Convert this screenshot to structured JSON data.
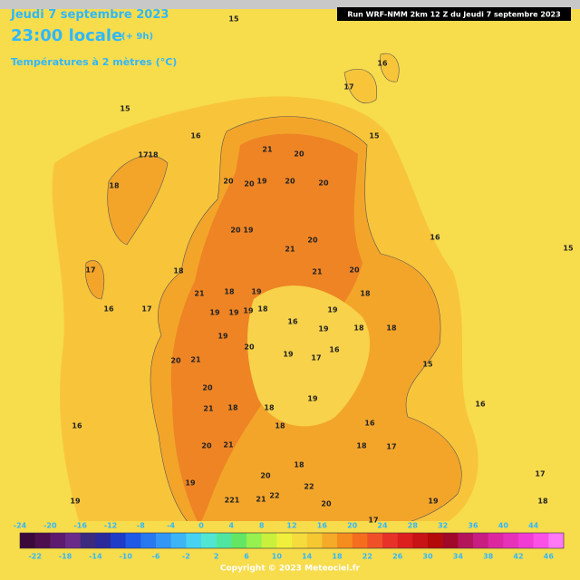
{
  "header": {
    "date": "Jeudi 7 septembre 2023",
    "time": "23:00 locale",
    "lead": "(+ 9h)",
    "parameter": "Températures à 2 mètres (°C)",
    "run": "Run WRF-NMM 2km 12 Z du Jeudi 7 septembre 2023"
  },
  "map_labels": [
    15,
    16,
    17,
    15,
    16,
    15,
    17,
    18,
    18,
    21,
    20,
    20,
    20,
    19,
    20,
    20,
    20,
    19,
    20,
    21,
    16,
    15,
    17,
    18,
    21,
    20,
    21,
    18,
    19,
    18,
    17,
    16,
    19,
    19,
    19,
    18,
    19,
    16,
    19,
    18,
    18,
    19,
    20,
    19,
    17,
    16,
    20,
    21,
    20,
    19,
    15,
    16,
    21,
    18,
    18,
    18,
    16,
    16,
    20,
    21,
    18,
    17,
    19,
    20,
    18,
    17,
    22,
    221,
    21,
    22,
    20,
    19,
    19,
    18,
    17
  ],
  "colorbar": {
    "top_labels": [
      -24,
      -20,
      -16,
      -12,
      -8,
      -4,
      0,
      4,
      8,
      12,
      16,
      20,
      24,
      28,
      32,
      36,
      40,
      44
    ],
    "bottom_labels": [
      -22,
      -18,
      -14,
      -10,
      -6,
      -2,
      2,
      6,
      10,
      14,
      18,
      22,
      26,
      30,
      34,
      38,
      42,
      46
    ]
  },
  "footer": {
    "copyright": "Copyright © 2023 Meteociel.fr"
  }
}
